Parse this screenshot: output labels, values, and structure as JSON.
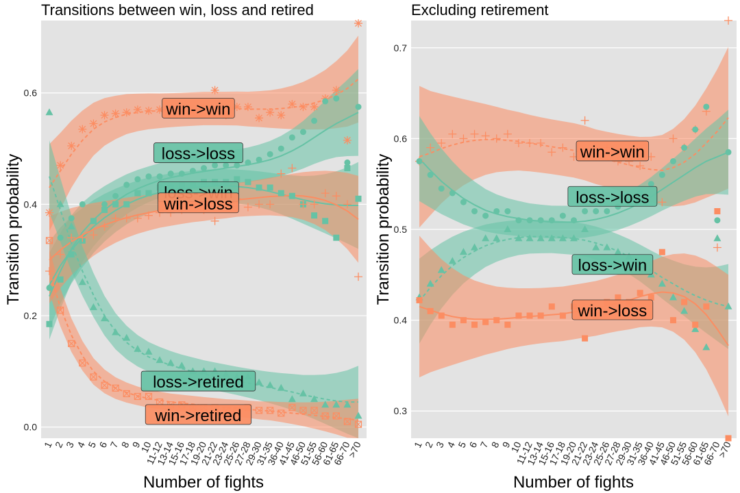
{
  "colors": {
    "win": "#fc8d62",
    "loss": "#66c2a5",
    "panel": "#e3e3e3",
    "grid": "#ffffff"
  },
  "chart_data": [
    {
      "type": "scatter",
      "title": "Transitions between win, loss and retired",
      "xlabel": "Number of fights",
      "ylabel": "Transition probability",
      "ylim": [
        -0.02,
        0.73
      ],
      "yticks": [
        0.0,
        0.2,
        0.4,
        0.6
      ],
      "ytick_labels": [
        "0.0",
        "0.2",
        "0.4",
        "0.6"
      ],
      "grid": true,
      "categories": [
        "1",
        "2",
        "3",
        "4",
        "5",
        "6",
        "7",
        "8",
        "9",
        "10",
        "11-12",
        "13-14",
        "15-16",
        "17-18",
        "19-20",
        "21-22",
        "23-24",
        "25-26",
        "27-28",
        "29-30",
        "31-35",
        "36-40",
        "41-45",
        "46-50",
        "51-55",
        "56-60",
        "61-65",
        "66-70",
        ">70"
      ],
      "series": [
        {
          "name": "win->win",
          "color": "win",
          "marker": "asterisk",
          "values": [
            0.385,
            0.47,
            0.505,
            0.535,
            0.545,
            0.56,
            0.563,
            0.565,
            0.57,
            0.568,
            0.57,
            0.572,
            0.568,
            0.565,
            0.575,
            0.605,
            0.56,
            0.575,
            0.575,
            0.555,
            0.565,
            0.56,
            0.58,
            0.575,
            0.575,
            0.59,
            0.605,
            0.515,
            0.725
          ],
          "trend": [
            0.43,
            0.46,
            0.49,
            0.515,
            0.535,
            0.548,
            0.556,
            0.562,
            0.565,
            0.567,
            0.568,
            0.569,
            0.57,
            0.571,
            0.572,
            0.572,
            0.572,
            0.572,
            0.571,
            0.571,
            0.571,
            0.572,
            0.574,
            0.577,
            0.582,
            0.588,
            0.597,
            0.608,
            0.625
          ],
          "band": 0.03
        },
        {
          "name": "loss->loss",
          "color": "loss",
          "marker": "circle",
          "values": [
            0.25,
            0.34,
            0.375,
            0.4,
            0.37,
            0.4,
            0.415,
            0.435,
            0.445,
            0.45,
            0.45,
            0.455,
            0.455,
            0.46,
            0.465,
            0.47,
            0.47,
            0.47,
            0.475,
            0.48,
            0.49,
            0.5,
            0.52,
            0.53,
            0.55,
            0.585,
            0.59,
            0.475,
            0.575
          ],
          "trend": [
            0.235,
            0.28,
            0.32,
            0.35,
            0.372,
            0.39,
            0.405,
            0.418,
            0.428,
            0.436,
            0.443,
            0.448,
            0.452,
            0.456,
            0.459,
            0.462,
            0.465,
            0.468,
            0.471,
            0.475,
            0.48,
            0.487,
            0.496,
            0.507,
            0.52,
            0.533,
            0.545,
            0.555,
            0.565
          ],
          "band": 0.03
        },
        {
          "name": "loss->win",
          "color": "loss",
          "marker": "square",
          "values": [
            0.185,
            0.265,
            0.31,
            0.335,
            0.37,
            0.39,
            0.4,
            0.4,
            0.42,
            0.42,
            0.43,
            0.43,
            0.435,
            0.435,
            0.44,
            0.44,
            0.44,
            0.445,
            0.44,
            0.43,
            0.43,
            0.42,
            0.415,
            0.4,
            0.38,
            0.37,
            0.34,
            0.465,
            0.41
          ],
          "trend": [
            0.255,
            0.29,
            0.318,
            0.34,
            0.36,
            0.376,
            0.389,
            0.4,
            0.409,
            0.416,
            0.421,
            0.425,
            0.428,
            0.43,
            0.432,
            0.433,
            0.433,
            0.432,
            0.43,
            0.427,
            0.423,
            0.418,
            0.413,
            0.408,
            0.404,
            0.401,
            0.399,
            0.398,
            0.398
          ],
          "band": 0.03
        },
        {
          "name": "win->loss",
          "color": "win",
          "marker": "plus",
          "values": [
            0.28,
            0.31,
            0.34,
            0.34,
            0.345,
            0.36,
            0.375,
            0.375,
            0.375,
            0.38,
            0.385,
            0.385,
            0.39,
            0.4,
            0.39,
            0.37,
            0.4,
            0.41,
            0.395,
            0.4,
            0.4,
            0.455,
            0.465,
            0.4,
            0.4,
            0.42,
            0.415,
            0.4,
            0.27
          ],
          "trend": [
            0.3,
            0.318,
            0.333,
            0.345,
            0.355,
            0.363,
            0.37,
            0.376,
            0.381,
            0.385,
            0.389,
            0.392,
            0.395,
            0.398,
            0.4,
            0.403,
            0.405,
            0.408,
            0.41,
            0.412,
            0.414,
            0.415,
            0.416,
            0.415,
            0.412,
            0.407,
            0.399,
            0.388,
            0.373
          ],
          "band": 0.03
        },
        {
          "name": "loss->retired",
          "color": "loss",
          "marker": "triangle",
          "values": [
            0.565,
            0.4,
            0.36,
            0.26,
            0.215,
            0.195,
            0.17,
            0.16,
            0.14,
            0.135,
            0.12,
            0.115,
            0.11,
            0.1,
            0.1,
            0.1,
            0.095,
            0.09,
            0.09,
            0.08,
            0.075,
            0.07,
            0.05,
            0.06,
            0.05,
            0.04,
            0.04,
            0.04,
            0.02
          ],
          "trend": [
            0.45,
            0.39,
            0.33,
            0.28,
            0.237,
            0.2,
            0.172,
            0.152,
            0.137,
            0.126,
            0.118,
            0.111,
            0.105,
            0.1,
            0.095,
            0.091,
            0.087,
            0.083,
            0.079,
            0.075,
            0.071,
            0.067,
            0.063,
            0.058,
            0.054,
            0.05,
            0.047,
            0.045,
            0.045
          ],
          "band": 0.025
        },
        {
          "name": "win->retired",
          "color": "win",
          "marker": "boxx",
          "values": [
            0.335,
            0.21,
            0.15,
            0.115,
            0.09,
            0.075,
            0.07,
            0.06,
            0.055,
            0.055,
            0.045,
            0.04,
            0.04,
            0.035,
            0.035,
            0.035,
            0.03,
            0.03,
            0.035,
            0.03,
            0.03,
            0.025,
            0.035,
            0.03,
            0.03,
            0.02,
            0.02,
            0.01,
            0.005
          ],
          "trend": [
            0.28,
            0.215,
            0.165,
            0.128,
            0.1,
            0.082,
            0.07,
            0.062,
            0.056,
            0.051,
            0.048,
            0.045,
            0.043,
            0.041,
            0.039,
            0.037,
            0.035,
            0.034,
            0.032,
            0.03,
            0.029,
            0.027,
            0.025,
            0.023,
            0.021,
            0.019,
            0.017,
            0.015,
            0.012
          ],
          "band": 0.015
        }
      ],
      "labels": [
        {
          "text": "win->win",
          "x": 13.5,
          "y": 0.572,
          "color": "win"
        },
        {
          "text": "loss->loss",
          "x": 13.5,
          "y": 0.492,
          "color": "loss"
        },
        {
          "text": "loss->win",
          "x": 13.5,
          "y": 0.422,
          "color": "loss"
        },
        {
          "text": "win->loss",
          "x": 13.5,
          "y": 0.402,
          "color": "win"
        },
        {
          "text": "loss->retired",
          "x": 13.5,
          "y": 0.082,
          "color": "loss"
        },
        {
          "text": "win->retired",
          "x": 13.5,
          "y": 0.022,
          "color": "win"
        }
      ]
    },
    {
      "type": "scatter",
      "title": "Excluding retirement",
      "xlabel": "Number of fights",
      "ylabel": "Transition probability",
      "ylim": [
        0.27,
        0.73
      ],
      "yticks": [
        0.3,
        0.4,
        0.5,
        0.6,
        0.7
      ],
      "ytick_labels": [
        "0.3",
        "0.4",
        "0.5",
        "0.6",
        "0.7"
      ],
      "grid": true,
      "categories": [
        "1",
        "2",
        "3",
        "4",
        "5",
        "6",
        "7",
        "8",
        "9",
        "10",
        "11-12",
        "13-14",
        "15-16",
        "17-18",
        "19-20",
        "21-22",
        "23-24",
        "25-26",
        "27-28",
        "29-30",
        "31-35",
        "36-40",
        "41-45",
        "46-50",
        "51-55",
        "56-60",
        "61-65",
        "66-70",
        ">70"
      ],
      "series": [
        {
          "name": "win->win",
          "color": "win",
          "marker": "plus",
          "values": [
            0.575,
            0.59,
            0.595,
            0.605,
            0.6,
            0.605,
            0.603,
            0.6,
            0.605,
            0.595,
            0.595,
            0.595,
            0.585,
            0.59,
            0.58,
            0.62,
            0.58,
            0.59,
            0.575,
            0.575,
            0.57,
            0.58,
            0.53,
            0.6,
            0.59,
            0.61,
            0.63,
            0.48,
            0.73
          ],
          "trend": [
            0.58,
            0.584,
            0.589,
            0.593,
            0.596,
            0.598,
            0.599,
            0.599,
            0.598,
            0.597,
            0.595,
            0.593,
            0.591,
            0.589,
            0.587,
            0.584,
            0.58,
            0.577,
            0.574,
            0.571,
            0.568,
            0.566,
            0.565,
            0.568,
            0.574,
            0.583,
            0.595,
            0.608,
            0.623
          ],
          "band": 0.03
        },
        {
          "name": "loss->loss",
          "color": "loss",
          "marker": "circle",
          "values": [
            0.575,
            0.56,
            0.545,
            0.54,
            0.53,
            0.52,
            0.515,
            0.52,
            0.52,
            0.51,
            0.51,
            0.51,
            0.51,
            0.515,
            0.51,
            0.52,
            0.52,
            0.52,
            0.525,
            0.53,
            0.54,
            0.55,
            0.56,
            0.575,
            0.59,
            0.61,
            0.635,
            0.51,
            0.585
          ],
          "trend": [
            0.578,
            0.565,
            0.553,
            0.543,
            0.534,
            0.527,
            0.521,
            0.517,
            0.514,
            0.512,
            0.51,
            0.509,
            0.508,
            0.508,
            0.508,
            0.509,
            0.511,
            0.514,
            0.518,
            0.523,
            0.529,
            0.536,
            0.544,
            0.552,
            0.56,
            0.568,
            0.575,
            0.58,
            0.585
          ],
          "band": 0.018
        },
        {
          "name": "loss->win",
          "color": "loss",
          "marker": "triangle",
          "values": [
            0.425,
            0.44,
            0.455,
            0.465,
            0.475,
            0.48,
            0.49,
            0.49,
            0.5,
            0.49,
            0.49,
            0.49,
            0.49,
            0.49,
            0.49,
            0.5,
            0.48,
            0.48,
            0.475,
            0.47,
            0.46,
            0.45,
            0.44,
            0.425,
            0.41,
            0.39,
            0.37,
            0.49,
            0.415
          ],
          "trend": [
            0.421,
            0.436,
            0.449,
            0.46,
            0.469,
            0.476,
            0.482,
            0.486,
            0.489,
            0.491,
            0.492,
            0.492,
            0.492,
            0.491,
            0.49,
            0.488,
            0.485,
            0.481,
            0.476,
            0.47,
            0.463,
            0.455,
            0.447,
            0.44,
            0.433,
            0.427,
            0.422,
            0.418,
            0.415
          ],
          "band": 0.018
        },
        {
          "name": "win->loss",
          "color": "win",
          "marker": "square",
          "values": [
            0.422,
            0.41,
            0.405,
            0.395,
            0.4,
            0.395,
            0.398,
            0.4,
            0.395,
            0.405,
            0.405,
            0.405,
            0.415,
            0.405,
            0.415,
            0.38,
            0.405,
            0.42,
            0.425,
            0.42,
            0.43,
            0.425,
            0.475,
            0.4,
            0.42,
            0.395,
            0.415,
            0.52,
            0.27
          ],
          "trend": [
            0.415,
            0.411,
            0.407,
            0.404,
            0.402,
            0.401,
            0.401,
            0.401,
            0.402,
            0.403,
            0.404,
            0.405,
            0.406,
            0.407,
            0.409,
            0.411,
            0.413,
            0.416,
            0.419,
            0.422,
            0.426,
            0.429,
            0.431,
            0.43,
            0.426,
            0.418,
            0.406,
            0.39,
            0.372
          ],
          "band": 0.03
        }
      ],
      "labels": [
        {
          "text": "win->win",
          "x": 17.5,
          "y": 0.586,
          "color": "win"
        },
        {
          "text": "loss->loss",
          "x": 17.5,
          "y": 0.536,
          "color": "loss"
        },
        {
          "text": "loss->win",
          "x": 17.5,
          "y": 0.461,
          "color": "loss"
        },
        {
          "text": "win->loss",
          "x": 17.5,
          "y": 0.411,
          "color": "win"
        }
      ]
    }
  ]
}
